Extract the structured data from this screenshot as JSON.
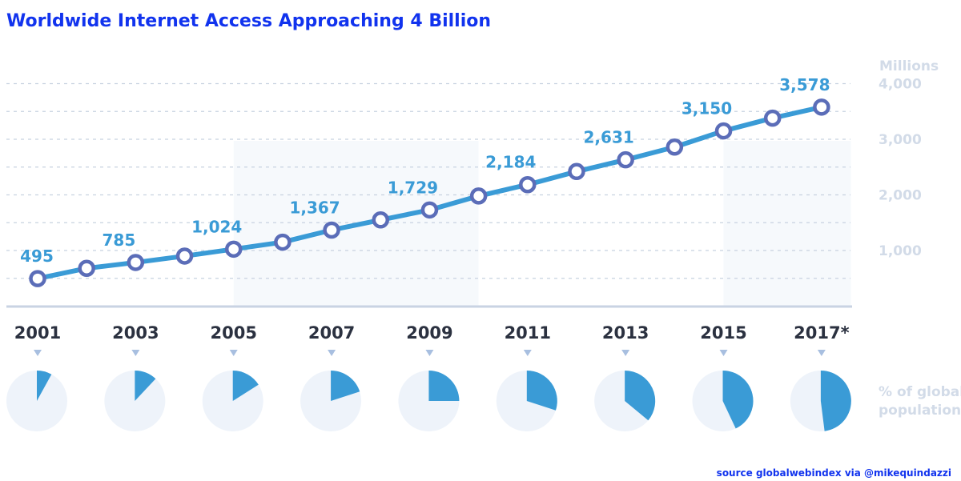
{
  "chart_data": {
    "type": "line",
    "title": "Worldwide Internet Access Approaching 4 Billion",
    "ylabel": "Millions",
    "ylim": [
      0,
      4000
    ],
    "y_ticks": [
      "1,000",
      "2,000",
      "3,000",
      "4,000"
    ],
    "y_tick_values": [
      1000,
      2000,
      3000,
      4000
    ],
    "x": [
      2001,
      2002,
      2003,
      2004,
      2005,
      2006,
      2007,
      2008,
      2009,
      2010,
      2011,
      2012,
      2013,
      2014,
      2015,
      2016,
      2017
    ],
    "x_tick_labels": [
      "2001",
      "2003",
      "2005",
      "2007",
      "2009",
      "2011",
      "2013",
      "2015",
      "2017*"
    ],
    "x_tick_years": [
      2001,
      2003,
      2005,
      2007,
      2009,
      2011,
      2013,
      2015,
      2017
    ],
    "values": [
      495,
      680,
      785,
      900,
      1024,
      1150,
      1367,
      1550,
      1729,
      1980,
      2184,
      2420,
      2631,
      2860,
      3150,
      3380,
      3578
    ],
    "data_labels": [
      {
        "year": 2001,
        "text": "495"
      },
      {
        "year": 2003,
        "text": "785"
      },
      {
        "year": 2005,
        "text": "1,024"
      },
      {
        "year": 2007,
        "text": "1,367"
      },
      {
        "year": 2009,
        "text": "1,729"
      },
      {
        "year": 2011,
        "text": "2,184"
      },
      {
        "year": 2013,
        "text": "2,631"
      },
      {
        "year": 2015,
        "text": "3,150"
      },
      {
        "year": 2017,
        "text": "3,578"
      }
    ],
    "grid": true,
    "pie_label_lines": [
      "% of global",
      "population"
    ],
    "pie_percent_of_global_population": [
      8,
      12,
      16,
      20,
      25,
      30,
      36,
      43,
      48
    ],
    "colors": {
      "line": "#3a9bd6",
      "marker": "#5b6db8",
      "pie_fill": "#3a9bd6",
      "pie_bg": "#eef3fa"
    }
  },
  "source": "source globalwebindex via @mikequindazzi"
}
